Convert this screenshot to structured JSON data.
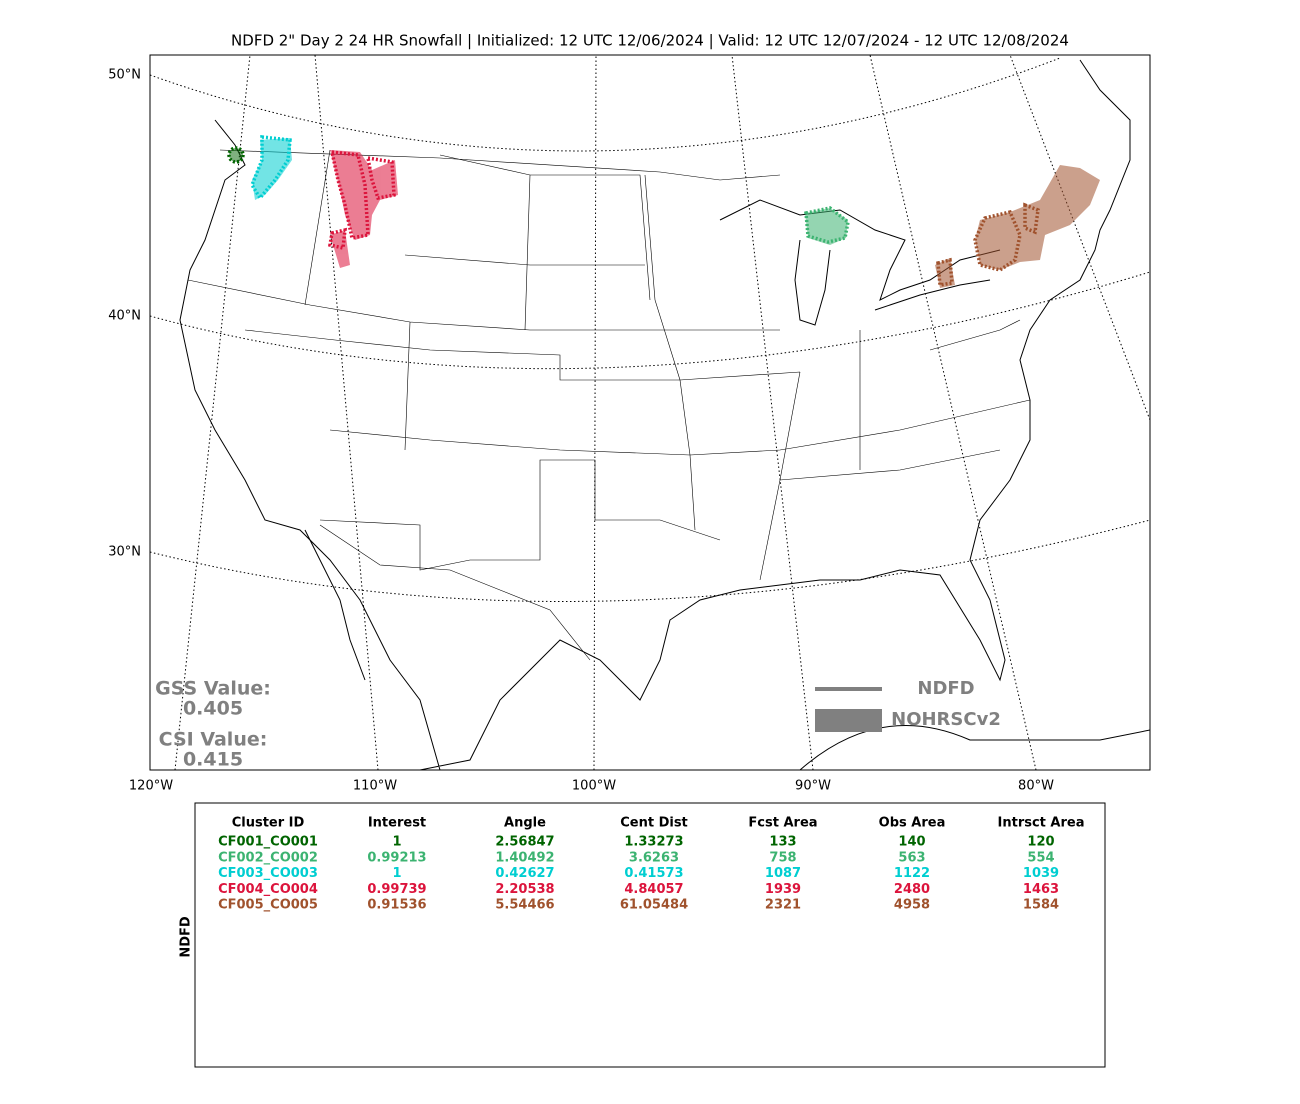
{
  "title": "NDFD 2\" Day 2 24 HR Snowfall | Initialized: 12 UTC 12/06/2024 | Valid: 12 UTC 12/07/2024 - 12 UTC 12/08/2024",
  "map": {
    "lat_labels": [
      "50°N",
      "40°N",
      "30°N"
    ],
    "lon_labels": [
      "120°W",
      "110°W",
      "100°W",
      "90°W",
      "80°W"
    ],
    "scores": [
      {
        "label": "GSS Value:",
        "value": "0.405"
      },
      {
        "label": "CSI Value:",
        "value": "0.415"
      }
    ],
    "legend": [
      {
        "label": "NDFD",
        "color": "#808080"
      },
      {
        "label": "NOHRSCv2",
        "color": "#808080"
      }
    ]
  },
  "table": {
    "side_label": "NDFD",
    "columns": [
      "Cluster ID",
      "Interest",
      "Angle",
      "Cent Dist",
      "Fcst Area",
      "Obs Area",
      "Intrsct Area"
    ],
    "rows": [
      [
        "CF001_CO001",
        "1",
        "2.56847",
        "1.33273",
        "133",
        "140",
        "120"
      ],
      [
        "CF002_CO002",
        "0.99213",
        "1.40492",
        "3.6263",
        "758",
        "563",
        "554"
      ],
      [
        "CF003_CO003",
        "1",
        "0.42627",
        "0.41573",
        "1087",
        "1122",
        "1039"
      ],
      [
        "CF004_CO004",
        "0.99739",
        "2.20538",
        "4.84057",
        "1939",
        "2480",
        "1463"
      ],
      [
        "CF005_CO005",
        "0.91536",
        "5.54466",
        "61.05484",
        "2321",
        "4958",
        "1584"
      ]
    ],
    "row_colors": [
      "#006400",
      "#3cb371",
      "#00ced1",
      "#dc143c",
      "#a0522d"
    ]
  }
}
